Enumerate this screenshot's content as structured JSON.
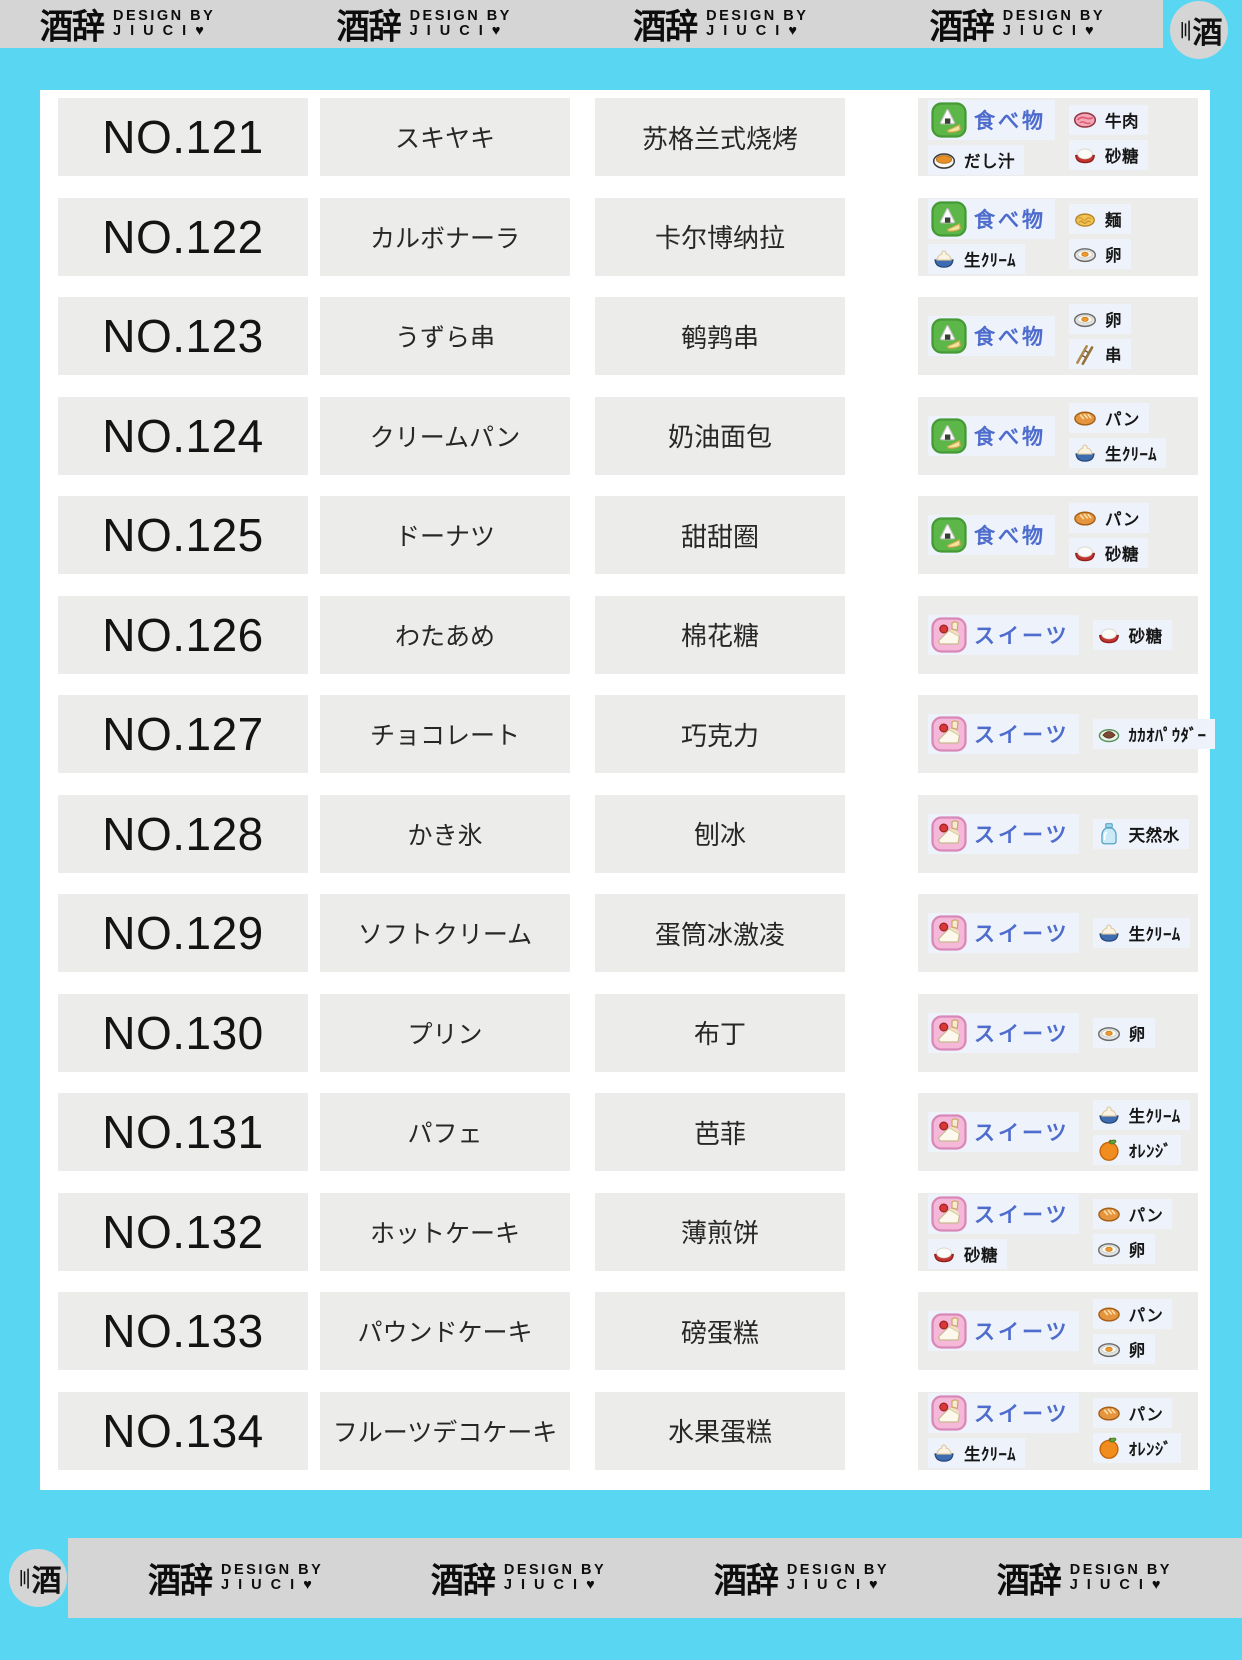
{
  "brand": {
    "logo": "酒辞",
    "line1": "DESIGN BY",
    "line2": "J I U C I ♥",
    "badge": "酒"
  },
  "header": {
    "repeats": 4
  },
  "footer": {
    "repeats": 4
  },
  "colors": {
    "frame_cyan": "#59d7f2",
    "bar_gray": "#d5d5d5",
    "panel_white": "#ffffff",
    "cell_gray": "#ececeb",
    "chip_bg": "#eef2fa",
    "category_blue": "#4d6ccd"
  },
  "rows": [
    {
      "no": "NO.121",
      "jp": "スキヤキ",
      "cn": "苏格兰式烧烤",
      "tags": {
        "left": [
          {
            "label": "食べ物",
            "icon": "food",
            "cat": true
          },
          {
            "label": "だし汁",
            "icon": "dashi"
          }
        ],
        "right": [
          {
            "label": "牛肉",
            "icon": "beef"
          },
          {
            "label": "砂糖",
            "icon": "sugar"
          }
        ]
      }
    },
    {
      "no": "NO.122",
      "jp": "カルボナーラ",
      "cn": "卡尔博纳拉",
      "tags": {
        "left": [
          {
            "label": "食べ物",
            "icon": "food",
            "cat": true
          },
          {
            "label": "生ｸﾘｰﾑ",
            "icon": "cream"
          }
        ],
        "right": [
          {
            "label": "麺",
            "icon": "noodles"
          },
          {
            "label": "卵",
            "icon": "egg"
          }
        ]
      }
    },
    {
      "no": "NO.123",
      "jp": "うずら串",
      "cn": "鹌鹑串",
      "tags": {
        "left": [
          {
            "label": "食べ物",
            "icon": "food",
            "cat": true
          }
        ],
        "right": [
          {
            "label": "卵",
            "icon": "egg"
          },
          {
            "label": "串",
            "icon": "skewer"
          }
        ]
      }
    },
    {
      "no": "NO.124",
      "jp": "クリームパン",
      "cn": "奶油面包",
      "tags": {
        "left": [
          {
            "label": "食べ物",
            "icon": "food",
            "cat": true
          }
        ],
        "right": [
          {
            "label": "パン",
            "icon": "bread"
          },
          {
            "label": "生ｸﾘｰﾑ",
            "icon": "cream"
          }
        ]
      }
    },
    {
      "no": "NO.125",
      "jp": "ドーナツ",
      "cn": "甜甜圈",
      "tags": {
        "left": [
          {
            "label": "食べ物",
            "icon": "food",
            "cat": true
          }
        ],
        "right": [
          {
            "label": "パン",
            "icon": "bread"
          },
          {
            "label": "砂糖",
            "icon": "sugar"
          }
        ]
      }
    },
    {
      "no": "NO.126",
      "jp": "わたあめ",
      "cn": "棉花糖",
      "tags": {
        "left": [
          {
            "label": "スイーツ",
            "icon": "sweets",
            "cat": true
          }
        ],
        "right": [
          {
            "label": "砂糖",
            "icon": "sugar"
          }
        ]
      }
    },
    {
      "no": "NO.127",
      "jp": "チョコレート",
      "cn": "巧克力",
      "tags": {
        "left": [
          {
            "label": "スイーツ",
            "icon": "sweets",
            "cat": true
          }
        ],
        "right": [
          {
            "label": "ｶｶｵﾊﾟｳﾀﾞｰ",
            "icon": "cocoa"
          }
        ]
      }
    },
    {
      "no": "NO.128",
      "jp": "かき氷",
      "cn": "刨冰",
      "tags": {
        "left": [
          {
            "label": "スイーツ",
            "icon": "sweets",
            "cat": true
          }
        ],
        "right": [
          {
            "label": "天然水",
            "icon": "water"
          }
        ]
      }
    },
    {
      "no": "NO.129",
      "jp": "ソフトクリーム",
      "cn": "蛋筒冰激凌",
      "tags": {
        "left": [
          {
            "label": "スイーツ",
            "icon": "sweets",
            "cat": true
          }
        ],
        "right": [
          {
            "label": "生ｸﾘｰﾑ",
            "icon": "cream"
          }
        ]
      }
    },
    {
      "no": "NO.130",
      "jp": "プリン",
      "cn": "布丁",
      "tags": {
        "left": [
          {
            "label": "スイーツ",
            "icon": "sweets",
            "cat": true
          }
        ],
        "right": [
          {
            "label": "卵",
            "icon": "egg"
          }
        ]
      }
    },
    {
      "no": "NO.131",
      "jp": "パフェ",
      "cn": "芭菲",
      "tags": {
        "left": [
          {
            "label": "スイーツ",
            "icon": "sweets",
            "cat": true
          }
        ],
        "right": [
          {
            "label": "生ｸﾘｰﾑ",
            "icon": "cream"
          },
          {
            "label": "ｵﾚﾝｼﾞ",
            "icon": "orange"
          }
        ]
      }
    },
    {
      "no": "NO.132",
      "jp": "ホットケーキ",
      "cn": "薄煎饼",
      "tags": {
        "left": [
          {
            "label": "スイーツ",
            "icon": "sweets",
            "cat": true
          },
          {
            "label": "砂糖",
            "icon": "sugar"
          }
        ],
        "right": [
          {
            "label": "パン",
            "icon": "bread"
          },
          {
            "label": "卵",
            "icon": "egg"
          }
        ]
      }
    },
    {
      "no": "NO.133",
      "jp": "パウンドケーキ",
      "cn": "磅蛋糕",
      "tags": {
        "left": [
          {
            "label": "スイーツ",
            "icon": "sweets",
            "cat": true
          }
        ],
        "right": [
          {
            "label": "パン",
            "icon": "bread"
          },
          {
            "label": "卵",
            "icon": "egg"
          }
        ]
      }
    },
    {
      "no": "NO.134",
      "jp": "フルーツデコケーキ",
      "cn": "水果蛋糕",
      "tags": {
        "left": [
          {
            "label": "スイーツ",
            "icon": "sweets",
            "cat": true
          },
          {
            "label": "生ｸﾘｰﾑ",
            "icon": "cream"
          }
        ],
        "right": [
          {
            "label": "パン",
            "icon": "bread"
          },
          {
            "label": "ｵﾚﾝｼﾞ",
            "icon": "orange"
          }
        ]
      }
    }
  ]
}
